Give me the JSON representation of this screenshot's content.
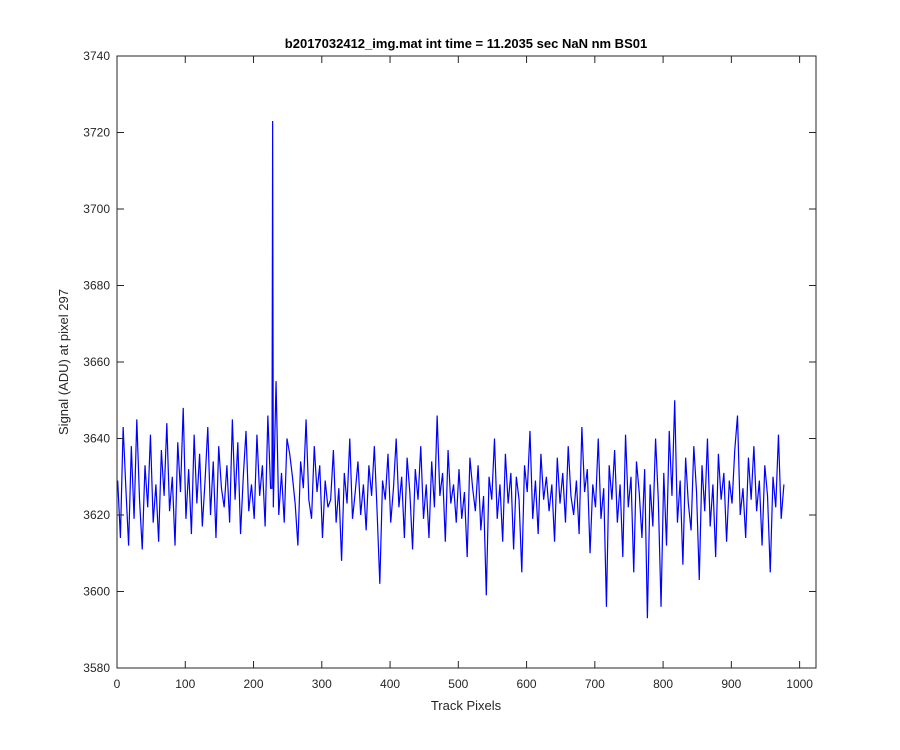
{
  "chart_data": {
    "type": "line",
    "title": "b2017032412_img.mat int time = 11.2035 sec  NaN nm BS01",
    "xlabel": "Track Pixels",
    "ylabel": "Signal (ADU) at pixel 297",
    "xlim": [
      0,
      1024
    ],
    "ylim": [
      3580,
      3740
    ],
    "xticks": [
      0,
      100,
      200,
      300,
      400,
      500,
      600,
      700,
      800,
      900,
      1000
    ],
    "yticks": [
      3580,
      3600,
      3620,
      3640,
      3660,
      3680,
      3700,
      3720,
      3740
    ],
    "grid": false,
    "line_color": "#0000ff",
    "series": [
      {
        "x_start": 1,
        "x_step": 4,
        "values": [
          3629,
          3614,
          3643,
          3627,
          3612,
          3638,
          3619,
          3645,
          3624,
          3611,
          3633,
          3622,
          3641,
          3618,
          3628,
          3613,
          3637,
          3625,
          3644,
          3621,
          3630,
          3612,
          3639,
          3626,
          3648,
          3619,
          3632,
          3615,
          3641,
          3623,
          3636,
          3617,
          3629,
          3643,
          3620,
          3634,
          3614,
          3638,
          3627,
          3622,
          3633,
          3618,
          3645,
          3624,
          3639,
          3615,
          3630,
          3642,
          3621,
          3628,
          3619,
          3641,
          3625,
          3633,
          3617,
          3646,
          3627,
          3622,
          3655,
          3620,
          3631,
          3618,
          3640,
          3636,
          3630,
          3623,
          3612,
          3634,
          3627,
          3645,
          3624,
          3619,
          3638,
          3626,
          3633,
          3614,
          3629,
          3622,
          3624,
          3637,
          3618,
          3627,
          3608,
          3631,
          3623,
          3640,
          3619,
          3626,
          3634,
          3620,
          3628,
          3616,
          3633,
          3625,
          3638,
          3621,
          3602,
          3629,
          3624,
          3636,
          3618,
          3627,
          3640,
          3622,
          3630,
          3614,
          3635,
          3626,
          3611,
          3632,
          3624,
          3638,
          3619,
          3628,
          3614,
          3634,
          3622,
          3646,
          3625,
          3631,
          3613,
          3637,
          3623,
          3628,
          3618,
          3632,
          3619,
          3626,
          3609,
          3635,
          3627,
          3621,
          3633,
          3616,
          3625,
          3599,
          3630,
          3624,
          3640,
          3619,
          3628,
          3613,
          3636,
          3623,
          3631,
          3611,
          3630,
          3624,
          3605,
          3633,
          3626,
          3642,
          3619,
          3629,
          3615,
          3636,
          3624,
          3630,
          3621,
          3628,
          3613,
          3635,
          3623,
          3631,
          3618,
          3638,
          3625,
          3620,
          3629,
          3615,
          3643,
          3626,
          3632,
          3610,
          3628,
          3622,
          3640,
          3619,
          3627,
          3596,
          3633,
          3624,
          3637,
          3618,
          3628,
          3609,
          3641,
          3622,
          3630,
          3605,
          3634,
          3626,
          3614,
          3632,
          3593,
          3628,
          3617,
          3640,
          3624,
          3596,
          3631,
          3612,
          3642,
          3625,
          3650,
          3618,
          3629,
          3607,
          3635,
          3623,
          3616,
          3638,
          3626,
          3603,
          3633,
          3621,
          3640,
          3617,
          3628,
          3609,
          3636,
          3624,
          3631,
          3613,
          3629,
          3623,
          3637,
          3646,
          3620,
          3627,
          3614,
          3635,
          3624,
          3638,
          3621,
          3629,
          3612,
          3633,
          3625,
          3605,
          3630,
          3622,
          3641,
          3619,
          3628
        ]
      }
    ],
    "spike": {
      "x": 228,
      "y": 3723
    }
  }
}
